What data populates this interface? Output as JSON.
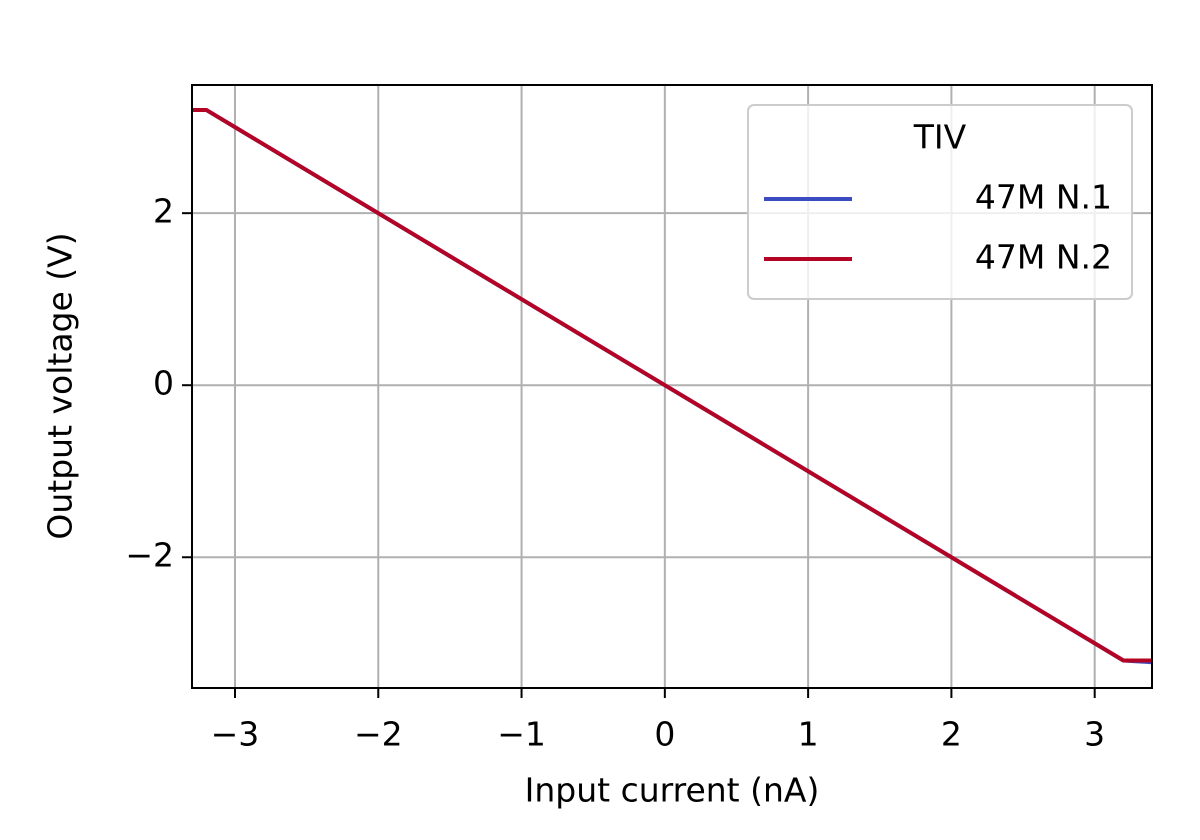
{
  "chart_data": {
    "type": "line",
    "x_label": "Input current (nA)",
    "y_label": "Output voltage (V)",
    "x": [
      -3.3,
      -3.2,
      0,
      3.2,
      3.4
    ],
    "series": [
      {
        "name": "47M N.1",
        "color": "#3b4cc0",
        "values": [
          3.2,
          3.2,
          0,
          -3.2,
          -3.22
        ]
      },
      {
        "name": "47M N.2",
        "color": "#b40426",
        "values": [
          3.2,
          3.2,
          0,
          -3.2,
          -3.2
        ]
      }
    ],
    "xlim": [
      -3.3,
      3.4
    ],
    "xticks": [
      {
        "value": -3,
        "label": "−3"
      },
      {
        "value": -2,
        "label": "−2"
      },
      {
        "value": -1,
        "label": "−1"
      },
      0,
      1,
      2,
      3
    ],
    "ylim": [
      -3.52,
      3.49
    ],
    "yticks": [
      {
        "value": -2,
        "label": "−2"
      },
      0,
      2
    ],
    "grid": true,
    "legend": {
      "title": "TIV",
      "position": "upper right"
    }
  }
}
